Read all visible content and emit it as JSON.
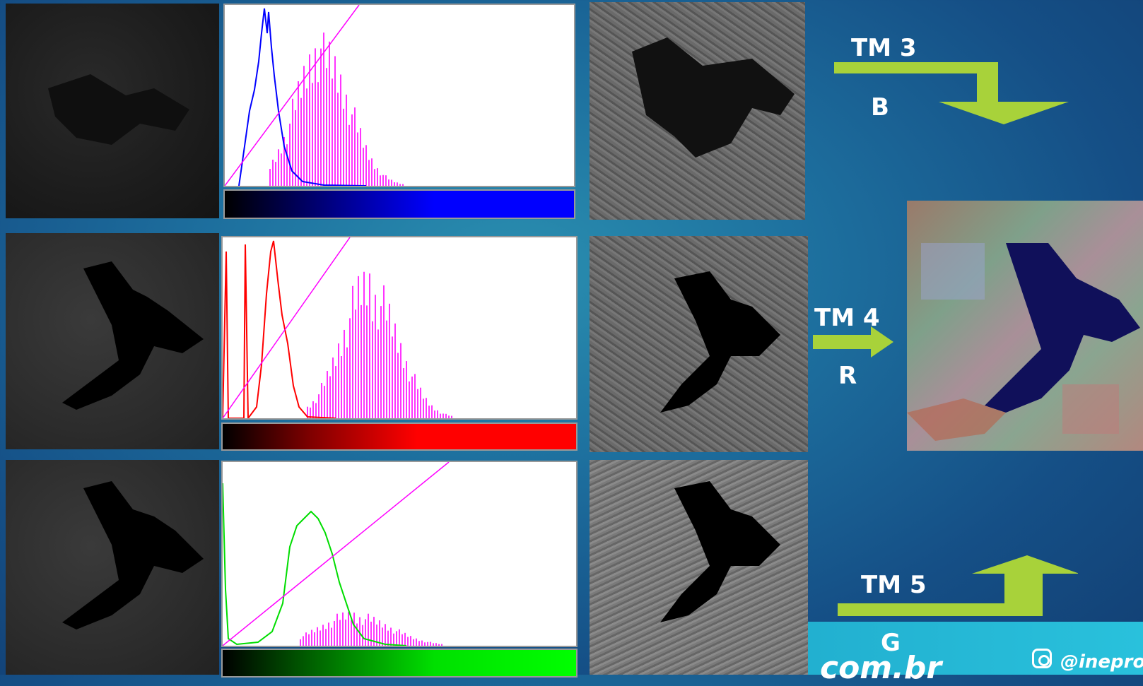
{
  "bands": [
    {
      "label": "TM 3",
      "channel": "B",
      "color": "#0000ff"
    },
    {
      "label": "TM 4",
      "channel": "R",
      "color": "#ff0000"
    },
    {
      "label": "TM 5",
      "channel": "G",
      "color": "#00ff00"
    }
  ],
  "footer": {
    "domain_fragment": "com.br",
    "instagram": "@inepro",
    "band_color": "#29c1dc"
  },
  "colors": {
    "stretch_line": "#ff00ff",
    "arrow": "#a8d23a",
    "background": "#1d6f9e"
  },
  "icons": [
    "instagram-icon",
    "arrow-down-icon",
    "arrow-right-icon",
    "arrow-up-icon"
  ]
}
